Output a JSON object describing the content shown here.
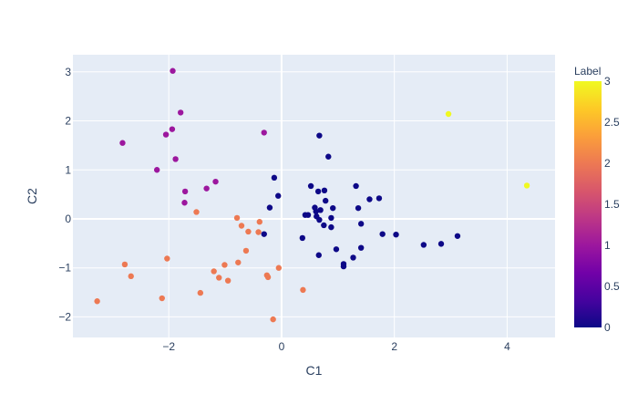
{
  "chart_data": {
    "type": "scatter",
    "title": "",
    "xlabel": "C1",
    "ylabel": "C2",
    "xlim": [
      -3.7,
      4.85
    ],
    "ylim": [
      -2.42,
      3.35
    ],
    "xticks": [
      -2,
      0,
      2,
      4
    ],
    "xtick_labels": [
      "−2",
      "0",
      "2",
      "4"
    ],
    "yticks": [
      -2,
      -1,
      0,
      1,
      2,
      3
    ],
    "ytick_labels": [
      "−2",
      "−1",
      "0",
      "1",
      "2",
      "3"
    ],
    "grid": true,
    "plot_background": "#e5ecf6",
    "grid_color": "#ffffff",
    "colorbar": {
      "title": "Label",
      "range": [
        0,
        3
      ],
      "ticks": [
        0,
        0.5,
        1,
        1.5,
        2,
        2.5,
        3
      ],
      "tick_labels": [
        "0",
        "0.5",
        "1",
        "1.5",
        "2",
        "2.5",
        "3"
      ],
      "colorscale": [
        "#0d0887",
        "#46039f",
        "#7201a8",
        "#9c179e",
        "#bd3786",
        "#d8576b",
        "#ed7953",
        "#fb9f3a",
        "#fdca26",
        "#f0f921"
      ]
    },
    "label_colors": {
      "0": "#0d0887",
      "1": "#9c179e",
      "2": "#ed7953",
      "3": "#f0f921"
    },
    "points": [
      {
        "x": 0.67,
        "y": 1.7,
        "label": 0
      },
      {
        "x": 0.83,
        "y": 1.27,
        "label": 0
      },
      {
        "x": -0.13,
        "y": 0.84,
        "label": 0
      },
      {
        "x": 1.32,
        "y": 0.67,
        "label": 0
      },
      {
        "x": 0.52,
        "y": 0.67,
        "label": 0
      },
      {
        "x": 0.65,
        "y": 0.56,
        "label": 0
      },
      {
        "x": 0.76,
        "y": 0.58,
        "label": 0
      },
      {
        "x": -0.06,
        "y": 0.47,
        "label": 0
      },
      {
        "x": 1.56,
        "y": 0.4,
        "label": 0
      },
      {
        "x": 1.73,
        "y": 0.42,
        "label": 0
      },
      {
        "x": 0.78,
        "y": 0.37,
        "label": 0
      },
      {
        "x": -0.21,
        "y": 0.23,
        "label": 0
      },
      {
        "x": 0.59,
        "y": 0.23,
        "label": 0
      },
      {
        "x": 0.69,
        "y": 0.18,
        "label": 0
      },
      {
        "x": 0.91,
        "y": 0.22,
        "label": 0
      },
      {
        "x": 1.36,
        "y": 0.22,
        "label": 0
      },
      {
        "x": 0.61,
        "y": 0.15,
        "label": 0
      },
      {
        "x": 0.42,
        "y": 0.08,
        "label": 0
      },
      {
        "x": 0.47,
        "y": 0.08,
        "label": 0
      },
      {
        "x": 0.62,
        "y": 0.05,
        "label": 0
      },
      {
        "x": 0.88,
        "y": 0.02,
        "label": 0
      },
      {
        "x": 0.67,
        "y": -0.02,
        "label": 0
      },
      {
        "x": 1.41,
        "y": -0.1,
        "label": 0
      },
      {
        "x": 0.75,
        "y": -0.13,
        "label": 0
      },
      {
        "x": 0.88,
        "y": -0.17,
        "label": 0
      },
      {
        "x": -0.31,
        "y": -0.31,
        "label": 0
      },
      {
        "x": 1.79,
        "y": -0.31,
        "label": 0
      },
      {
        "x": 2.03,
        "y": -0.32,
        "label": 0
      },
      {
        "x": 3.12,
        "y": -0.35,
        "label": 0
      },
      {
        "x": 0.37,
        "y": -0.39,
        "label": 0
      },
      {
        "x": 2.52,
        "y": -0.53,
        "label": 0
      },
      {
        "x": 2.83,
        "y": -0.51,
        "label": 0
      },
      {
        "x": 1.41,
        "y": -0.59,
        "label": 0
      },
      {
        "x": 0.97,
        "y": -0.62,
        "label": 0
      },
      {
        "x": 0.66,
        "y": -0.74,
        "label": 0
      },
      {
        "x": 1.27,
        "y": -0.79,
        "label": 0
      },
      {
        "x": 1.1,
        "y": -0.92,
        "label": 0
      },
      {
        "x": 1.1,
        "y": -0.97,
        "label": 0
      },
      {
        "x": -1.93,
        "y": 3.02,
        "label": 1
      },
      {
        "x": -1.79,
        "y": 2.17,
        "label": 1
      },
      {
        "x": -1.94,
        "y": 1.83,
        "label": 1
      },
      {
        "x": -2.05,
        "y": 1.72,
        "label": 1
      },
      {
        "x": -0.31,
        "y": 1.76,
        "label": 1
      },
      {
        "x": -2.82,
        "y": 1.55,
        "label": 1
      },
      {
        "x": -1.88,
        "y": 1.22,
        "label": 1
      },
      {
        "x": -2.21,
        "y": 1.0,
        "label": 1
      },
      {
        "x": -1.17,
        "y": 0.76,
        "label": 1
      },
      {
        "x": -1.33,
        "y": 0.62,
        "label": 1
      },
      {
        "x": -1.71,
        "y": 0.56,
        "label": 1
      },
      {
        "x": -1.72,
        "y": 0.33,
        "label": 1
      },
      {
        "x": -1.51,
        "y": 0.14,
        "label": 2
      },
      {
        "x": -0.79,
        "y": 0.02,
        "label": 2
      },
      {
        "x": -0.39,
        "y": -0.06,
        "label": 2
      },
      {
        "x": -0.71,
        "y": -0.14,
        "label": 2
      },
      {
        "x": -0.59,
        "y": -0.26,
        "label": 2
      },
      {
        "x": -0.41,
        "y": -0.27,
        "label": 2
      },
      {
        "x": -0.63,
        "y": -0.65,
        "label": 2
      },
      {
        "x": -2.03,
        "y": -0.81,
        "label": 2
      },
      {
        "x": -0.77,
        "y": -0.89,
        "label": 2
      },
      {
        "x": -2.78,
        "y": -0.93,
        "label": 2
      },
      {
        "x": -1.01,
        "y": -0.94,
        "label": 2
      },
      {
        "x": -0.05,
        "y": -1.0,
        "label": 2
      },
      {
        "x": -1.2,
        "y": -1.07,
        "label": 2
      },
      {
        "x": -2.67,
        "y": -1.17,
        "label": 2
      },
      {
        "x": -0.26,
        "y": -1.15,
        "label": 2
      },
      {
        "x": -0.24,
        "y": -1.19,
        "label": 2
      },
      {
        "x": -1.11,
        "y": -1.2,
        "label": 2
      },
      {
        "x": -0.95,
        "y": -1.26,
        "label": 2
      },
      {
        "x": 0.38,
        "y": -1.45,
        "label": 2
      },
      {
        "x": -1.44,
        "y": -1.51,
        "label": 2
      },
      {
        "x": -2.12,
        "y": -1.62,
        "label": 2
      },
      {
        "x": -3.27,
        "y": -1.68,
        "label": 2
      },
      {
        "x": -0.15,
        "y": -2.05,
        "label": 2
      },
      {
        "x": 2.96,
        "y": 2.14,
        "label": 3
      },
      {
        "x": 4.35,
        "y": 0.68,
        "label": 3
      }
    ]
  }
}
